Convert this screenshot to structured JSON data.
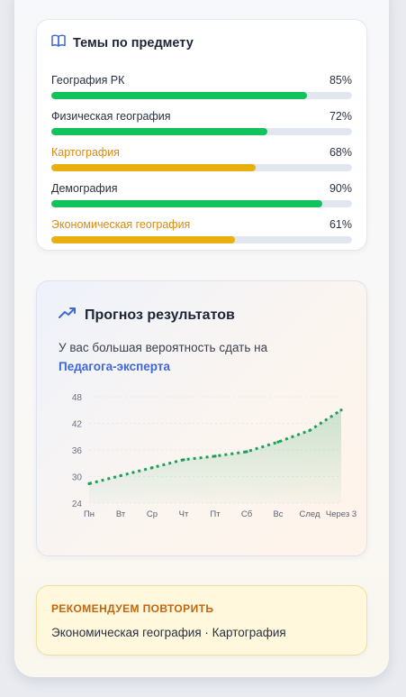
{
  "topics_card": {
    "title": "Темы по предмету",
    "icon": "book-icon",
    "colors": {
      "good": "#12c25a",
      "warn": "#e8b00e",
      "warn_text": "#d98a12"
    },
    "items": [
      {
        "name": "География РК",
        "percent_label": "85%",
        "percent": 85,
        "status": "good"
      },
      {
        "name": "Физическая география",
        "percent_label": "72%",
        "percent": 72,
        "status": "good"
      },
      {
        "name": "Картография",
        "percent_label": "68%",
        "percent": 68,
        "status": "warn"
      },
      {
        "name": "Демография",
        "percent_label": "90%",
        "percent": 90,
        "status": "good"
      },
      {
        "name": "Экономическая география",
        "percent_label": "61%",
        "percent": 61,
        "status": "warn"
      }
    ]
  },
  "forecast_card": {
    "title": "Прогноз результатов",
    "icon": "trending-up-icon",
    "text": "У вас большая вероятность сдать на",
    "highlight": "Педагога-эксперта"
  },
  "chart_data": {
    "type": "line",
    "categories": [
      "Пн",
      "Вт",
      "Ср",
      "Чт",
      "Пт",
      "Сб",
      "Вс",
      "След",
      "Через 3"
    ],
    "series": [
      {
        "values": [
          28.4,
          30.2,
          32.0,
          33.8,
          34.6,
          35.6,
          37.8,
          40.4,
          45.0
        ]
      }
    ],
    "y_ticks": [
      24,
      30,
      36,
      42,
      48
    ],
    "ylim": [
      24,
      48
    ],
    "grid": true,
    "line_style": "dotted",
    "area_fill": true,
    "color": "#1f9e5c"
  },
  "recommend_card": {
    "title": "РЕКОМЕНДУЕМ ПОВТОРИТЬ",
    "text": "Экономическая география · Картография"
  }
}
